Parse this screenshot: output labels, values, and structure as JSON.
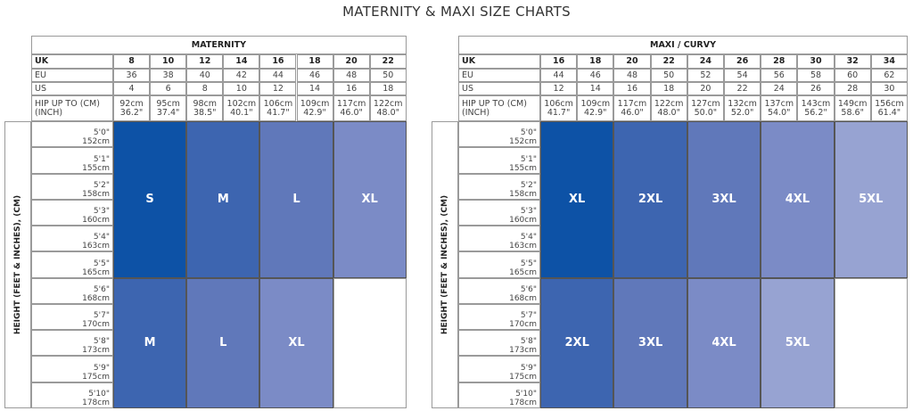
{
  "page_title": "MATERNITY & MAXI SIZE CHARTS",
  "height_label": "HEIGHT (FEET & INCHES), (CM)",
  "heights": [
    [
      "5'0\"",
      "152cm"
    ],
    [
      "5'1\"",
      "155cm"
    ],
    [
      "5'2\"",
      "158cm"
    ],
    [
      "5'3\"",
      "160cm"
    ],
    [
      "5'4\"",
      "163cm"
    ],
    [
      "5'5\"",
      "165cm"
    ],
    [
      "5'6\"",
      "168cm"
    ],
    [
      "5'7\"",
      "170cm"
    ],
    [
      "5'8\"",
      "173cm"
    ],
    [
      "5'9\"",
      "175cm"
    ],
    [
      "5'10\"",
      "178cm"
    ]
  ],
  "row_labels": {
    "uk": "UK",
    "eu": "EU",
    "us": "US",
    "hip": "HIP UP TO (CM) (INCH)"
  },
  "colors": {
    "S": "#0d52a6",
    "M": "#3d65b0",
    "L": "#6078ba",
    "XL": "#7b8bc6",
    "5XL": "#97a3d2",
    "XL_maxi": "#0d52a6",
    "2XL": "#3d65b0",
    "3XL": "#6078ba",
    "4XL": "#7b8bc6"
  },
  "charts": [
    {
      "title": "MATERNITY",
      "uk": [
        "8",
        "10",
        "12",
        "14",
        "16",
        "18",
        "20",
        "22"
      ],
      "eu": [
        "36",
        "38",
        "40",
        "42",
        "44",
        "46",
        "48",
        "50"
      ],
      "us": [
        "4",
        "6",
        "8",
        "10",
        "12",
        "14",
        "16",
        "18"
      ],
      "hip": [
        [
          "92cm",
          "36.2\""
        ],
        [
          "95cm",
          "37.4\""
        ],
        [
          "98cm",
          "38.5\""
        ],
        [
          "102cm",
          "40.1\""
        ],
        [
          "106cm",
          "41.7\""
        ],
        [
          "109cm",
          "42.9\""
        ],
        [
          "117cm",
          "46.0\""
        ],
        [
          "122cm",
          "48.0\""
        ]
      ],
      "top_sizes": [
        {
          "label": "S",
          "color": "#0d52a6"
        },
        {
          "label": "M",
          "color": "#3d65b0"
        },
        {
          "label": "L",
          "color": "#6078ba"
        },
        {
          "label": "XL",
          "color": "#7b8bc6"
        }
      ],
      "bottom_sizes": [
        {
          "label": "M",
          "color": "#3d65b0"
        },
        {
          "label": "L",
          "color": "#6078ba"
        },
        {
          "label": "XL",
          "color": "#7b8bc6"
        },
        {
          "label": "",
          "color": "#ffffff"
        }
      ]
    },
    {
      "title": "MAXI / CURVY",
      "uk": [
        "16",
        "18",
        "20",
        "22",
        "24",
        "26",
        "28",
        "30",
        "32",
        "34"
      ],
      "eu": [
        "44",
        "46",
        "48",
        "50",
        "52",
        "54",
        "56",
        "58",
        "60",
        "62"
      ],
      "us": [
        "12",
        "14",
        "16",
        "18",
        "20",
        "22",
        "24",
        "26",
        "28",
        "30"
      ],
      "hip": [
        [
          "106cm",
          "41.7\""
        ],
        [
          "109cm",
          "42.9\""
        ],
        [
          "117cm",
          "46.0\""
        ],
        [
          "122cm",
          "48.0\""
        ],
        [
          "127cm",
          "50.0\""
        ],
        [
          "132cm",
          "52.0\""
        ],
        [
          "137cm",
          "54.0\""
        ],
        [
          "143cm",
          "56.2\""
        ],
        [
          "149cm",
          "58.6\""
        ],
        [
          "156cm",
          "61.4\""
        ]
      ],
      "top_sizes": [
        {
          "label": "XL",
          "color": "#0d52a6"
        },
        {
          "label": "2XL",
          "color": "#3d65b0"
        },
        {
          "label": "3XL",
          "color": "#6078ba"
        },
        {
          "label": "4XL",
          "color": "#7b8bc6"
        },
        {
          "label": "5XL",
          "color": "#97a3d2"
        }
      ],
      "bottom_sizes": [
        {
          "label": "2XL",
          "color": "#3d65b0"
        },
        {
          "label": "3XL",
          "color": "#6078ba"
        },
        {
          "label": "4XL",
          "color": "#7b8bc6"
        },
        {
          "label": "5XL",
          "color": "#97a3d2"
        },
        {
          "label": "",
          "color": "#ffffff"
        }
      ]
    }
  ]
}
